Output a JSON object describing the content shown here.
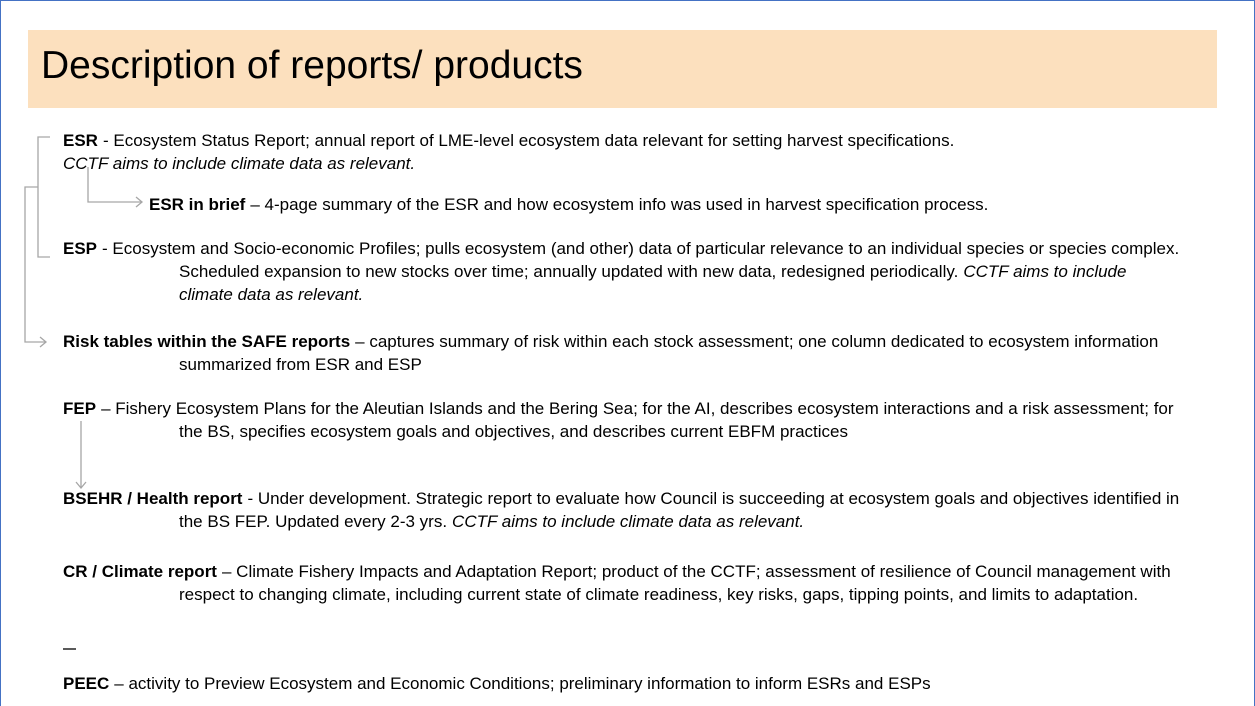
{
  "title": "Description of reports/ products",
  "items": [
    {
      "term": "ESR",
      "text": "- Ecosystem Status Report; annual report of LME-level ecosystem data relevant for setting harvest specifications.",
      "note": "CCTF aims to include climate data as relevant."
    },
    {
      "term": "ESR in brief",
      "text": "– 4-page summary of the ESR and how ecosystem info was used in harvest specification process."
    },
    {
      "term": "ESP",
      "text": "- Ecosystem and Socio-economic Profiles; pulls ecosystem (and other) data of particular relevance to an individual species or species complex. Scheduled expansion to new stocks over time; annually updated with new data, redesigned periodically.",
      "note": "CCTF aims to include climate data as relevant."
    },
    {
      "term": "Risk tables within the SAFE reports",
      "text": "– captures summary of risk within each stock assessment; one column dedicated to ecosystem information summarized from ESR and ESP"
    },
    {
      "term": "FEP",
      "text": "– Fishery Ecosystem Plans for the Aleutian Islands and the Bering Sea; for the AI, describes ecosystem interactions and a risk assessment; for the BS, specifies ecosystem goals and objectives, and describes current EBFM practices"
    },
    {
      "term": "BSEHR / Health report",
      "text": "- Under development. Strategic report to evaluate how Council is succeeding at ecosystem goals and objectives identified in the BS FEP. Updated every 2-3 yrs.",
      "note": "CCTF aims to include climate data as relevant."
    },
    {
      "term": "CR / Climate report",
      "text": "– Climate Fishery Impacts and Adaptation Report; product of the CCTF; assessment of resilience of Council management with respect to changing climate, including current state of climate readiness, key risks, gaps, tipping points, and limits to adaptation."
    },
    {
      "term": "PEEC",
      "text": "– activity to Preview Ecosystem and Economic Conditions; preliminary information to inform ESRs and ESPs"
    }
  ]
}
